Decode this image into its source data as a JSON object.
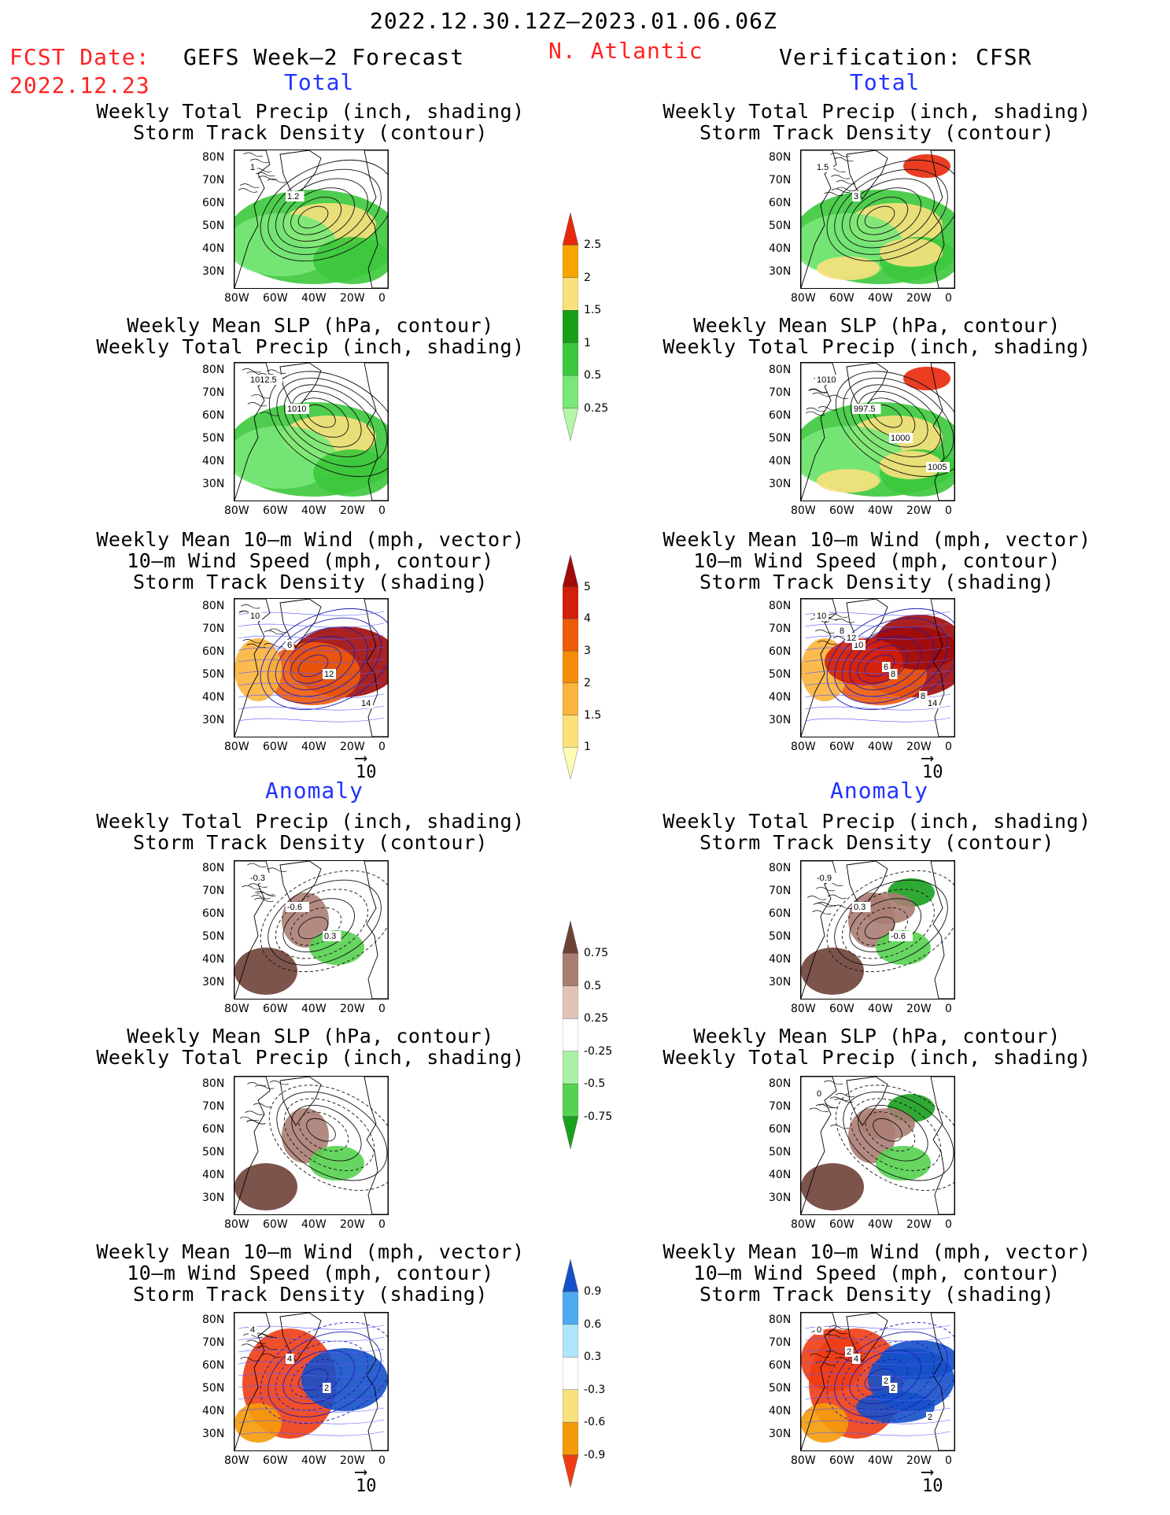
{
  "header": {
    "period": "2022.12.30.12Z–2023.01.06.06Z",
    "fcst_label": "FCST Date:",
    "fcst_date": "2022.12.23",
    "model": "GEFS Week–2 Forecast",
    "region": "N. Atlantic",
    "verification": "Verification: CFSR"
  },
  "sections": {
    "total": "Total",
    "anomaly": "Anomaly"
  },
  "titles": {
    "precip_track": [
      "Weekly Total Precip (inch, shading)",
      "Storm Track Density (contour)"
    ],
    "slp_precip": [
      "Weekly Mean SLP (hPa, contour)",
      "Weekly Total Precip (inch, shading)"
    ],
    "wind_track": [
      "Weekly Mean 10–m Wind (mph, vector)",
      "10–m Wind Speed (mph, contour)",
      "Storm Track Density (shading)"
    ]
  },
  "axes": {
    "lat": [
      "80N",
      "70N",
      "60N",
      "50N",
      "40N",
      "30N"
    ],
    "lon": [
      "80W",
      "60W",
      "40W",
      "20W",
      "0"
    ]
  },
  "vector_ref": "10",
  "colorbars": {
    "precip_total": {
      "levels": [
        "0.25",
        "0.5",
        "1",
        "1.5",
        "2",
        "2.5"
      ],
      "colors": [
        "#b4f5a8",
        "#78e878",
        "#3cc83c",
        "#17a017",
        "#fae17d",
        "#f5a500",
        "#e8280a"
      ]
    },
    "track_total": {
      "levels": [
        "1",
        "1.5",
        "2",
        "3",
        "4",
        "5"
      ],
      "colors": [
        "#fffcb4",
        "#fde07a",
        "#fbb43c",
        "#f58c0a",
        "#ee5a0a",
        "#d21e0a",
        "#a00a0a"
      ]
    },
    "precip_anom": {
      "levels": [
        "0.75",
        "0.5",
        "0.25",
        "-0.25",
        "-0.5",
        "-0.75"
      ],
      "colors": [
        "#19a01e",
        "#55d250",
        "#aaf0a5",
        "#ffffff",
        "#e1c3b9",
        "#aa7d73",
        "#6e4137"
      ]
    },
    "track_anom": {
      "levels": [
        "0.9",
        "0.6",
        "0.3",
        "-0.3",
        "-0.6",
        "-0.9"
      ],
      "colors": [
        "#ee3c14",
        "#f59b0a",
        "#fae17d",
        "#ffffff",
        "#afe6fa",
        "#50aaf0",
        "#1450c8"
      ]
    }
  },
  "panels": {
    "fc_precip": {
      "labels": [
        "1",
        "1.2"
      ]
    },
    "fc_slp": {
      "labels": [
        "1012.5",
        "1010"
      ]
    },
    "fc_wind": {
      "labels": [
        "10",
        "6",
        "12",
        "14"
      ]
    },
    "vf_precip": {
      "labels": [
        "1.5",
        "3"
      ]
    },
    "vf_slp": {
      "labels": [
        "1010",
        "997.5",
        "1000",
        "1005"
      ]
    },
    "vf_wind": {
      "labels": [
        "10",
        "10",
        "8",
        "14",
        "12",
        "6",
        "8",
        "8"
      ]
    },
    "fc_precip_anom": {
      "labels": [
        "-0.3",
        "-0.6",
        "0.3"
      ]
    },
    "fc_slp_anom": {
      "labels": []
    },
    "fc_wind_anom": {
      "labels": [
        "4",
        "4",
        "2"
      ]
    },
    "vf_precip_anom": {
      "labels": [
        "-0.9",
        "0.3",
        "-0.6"
      ]
    },
    "vf_slp_anom": {
      "labels": [
        "0"
      ]
    },
    "vf_wind_anom": {
      "labels": [
        "0",
        "4",
        "2",
        "2",
        "2",
        "2"
      ]
    }
  },
  "colors": {
    "header_red": "#ff2222",
    "section_blue": "#2233ff"
  }
}
